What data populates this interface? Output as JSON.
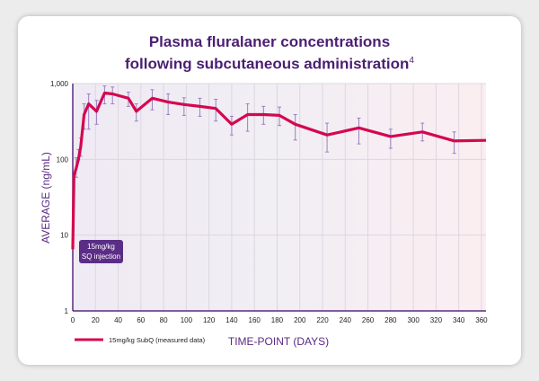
{
  "chart_data": {
    "type": "line",
    "title_line1": "Plasma fluralaner concentrations",
    "title_line2": "following subcutaneous administration",
    "title_superscript": "4",
    "xlabel": "TIME-POINT (DAYS)",
    "ylabel": "AVERAGE (ng/mL)",
    "yscale": "log",
    "ylim": [
      1,
      1000
    ],
    "xlim": [
      0,
      364
    ],
    "yticks": [
      "1",
      "10",
      "100",
      "1,000"
    ],
    "xticks": [
      "0",
      "20",
      "40",
      "60",
      "80",
      "100",
      "120",
      "140",
      "160",
      "180",
      "200",
      "220",
      "240",
      "260",
      "280",
      "300",
      "320",
      "340",
      "360"
    ],
    "grid": true,
    "legend_position": "bottom-left",
    "annotation": [
      "15mg/kg",
      "SQ injection"
    ],
    "colors": {
      "line": "#d4084f",
      "error_bar": "#9a80c2",
      "axis": "#5a2a82",
      "annotation_bg": "#5b2d86"
    },
    "series": [
      {
        "name": "15mg/kg SubQ (measured data)",
        "x": [
          0,
          1,
          3,
          5,
          7,
          10,
          14,
          21,
          28,
          35,
          49,
          56,
          70,
          84,
          98,
          112,
          126,
          140,
          154,
          168,
          182,
          196,
          224,
          252,
          280,
          308,
          336,
          364
        ],
        "y": [
          6.5,
          61,
          76,
          100,
          145,
          390,
          540,
          430,
          750,
          730,
          640,
          430,
          640,
          570,
          530,
          500,
          470,
          290,
          390,
          390,
          380,
          290,
          210,
          260,
          200,
          230,
          175,
          178
        ],
        "error_low": [
          null,
          null,
          58,
          98,
          110,
          250,
          250,
          290,
          540,
          540,
          500,
          320,
          450,
          390,
          380,
          370,
          320,
          210,
          235,
          290,
          280,
          180,
          125,
          160,
          140,
          175,
          120,
          null
        ],
        "error_high": [
          null,
          null,
          105,
          135,
          190,
          540,
          730,
          600,
          930,
          900,
          770,
          540,
          830,
          730,
          650,
          640,
          620,
          370,
          540,
          500,
          490,
          390,
          300,
          350,
          250,
          300,
          230,
          null
        ]
      }
    ]
  }
}
